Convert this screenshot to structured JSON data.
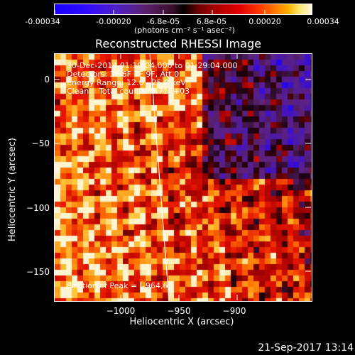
{
  "colorbar": {
    "ticks": [
      "-0.00034",
      "-0.00020",
      "-6.8e-05",
      "6.8e-05",
      "0.00020",
      "0.00034"
    ],
    "units_text": "(photons cm⁻² s⁻¹ asec⁻²)"
  },
  "plot": {
    "title": "Reconstructed RHESSI Image",
    "info_lines": [
      "30-Dec-2014 01:19:04.000 to 01:29:04.000",
      "Detectors: 3F 6F 7F 9F, Att 0",
      "Energy Range: 12.0 - 25.0 keV",
      "Clean    Total counts: 5.71E+03"
    ],
    "peak_text": "Position of Peak = [-964,6]",
    "xlabel": "Heliocentric X (arcsec)",
    "ylabel": "Heliocentric Y (arcsec)",
    "xticks": [
      "−1000",
      "−950",
      "−900"
    ],
    "yticks": [
      "0",
      "−50",
      "−100",
      "−150"
    ]
  },
  "footer": {
    "timestamp": "21-Sep-2017 13:14"
  },
  "colors": {
    "background": "#000000",
    "foreground": "#ffffff"
  }
}
